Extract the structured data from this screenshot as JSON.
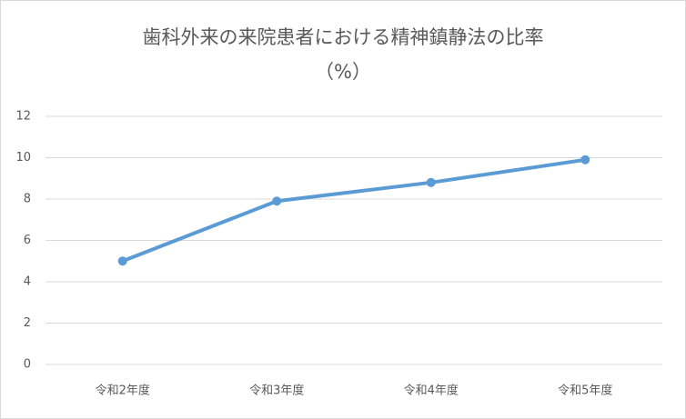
{
  "chart_data": {
    "type": "line",
    "title": "歯科外来の来院患者における精神鎮静法の比率",
    "subtitle": "（%）",
    "categories": [
      "令和2年度",
      "令和3年度",
      "令和4年度",
      "令和5年度"
    ],
    "series": [
      {
        "color": "#5b9bd5",
        "values": [
          5.0,
          7.9,
          8.8,
          9.9
        ]
      }
    ],
    "ylim": [
      0,
      12
    ],
    "yticks": [
      0,
      2,
      4,
      6,
      8,
      10,
      12
    ],
    "grid": true
  }
}
